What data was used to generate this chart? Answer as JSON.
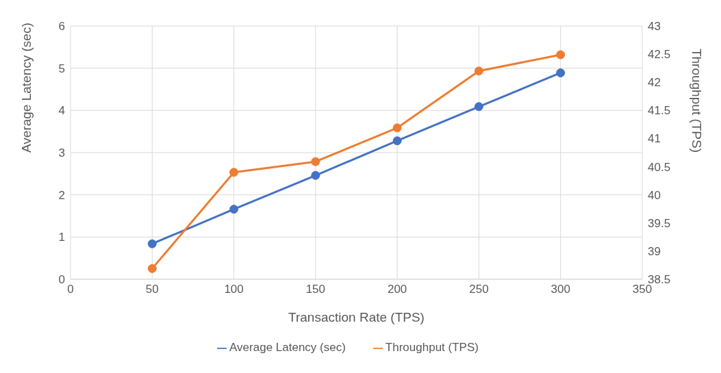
{
  "chart_data": {
    "type": "line",
    "xlabel": "Transaction Rate (TPS)",
    "ylabel": "Average Latency (sec)",
    "y2label": "Throughput (TPS)",
    "x": [
      50,
      100,
      150,
      200,
      250,
      300
    ],
    "series": [
      {
        "name": "Average Latency (sec)",
        "color": "#4472c4",
        "values": [
          0.84,
          1.66,
          2.46,
          3.28,
          4.09,
          4.89
        ]
      },
      {
        "name": "Throughput (TPS)",
        "color": "#ed7d31",
        "axis": "y2",
        "values": [
          38.69,
          40.4,
          40.59,
          41.19,
          42.2,
          42.49
        ]
      }
    ],
    "xlim": [
      0,
      350
    ],
    "xticks": [
      0,
      50,
      100,
      150,
      200,
      250,
      300,
      350
    ],
    "ylim": [
      0,
      6
    ],
    "yticks": [
      0,
      1,
      2,
      3,
      4,
      5,
      6
    ],
    "y2lim": [
      38.5,
      43
    ],
    "y2ticks": [
      38.5,
      39,
      39.5,
      40,
      40.5,
      41,
      41.5,
      42,
      42.5,
      43
    ],
    "grid": true,
    "legend": "bottom",
    "marker": "circle",
    "line_style": "solid"
  }
}
